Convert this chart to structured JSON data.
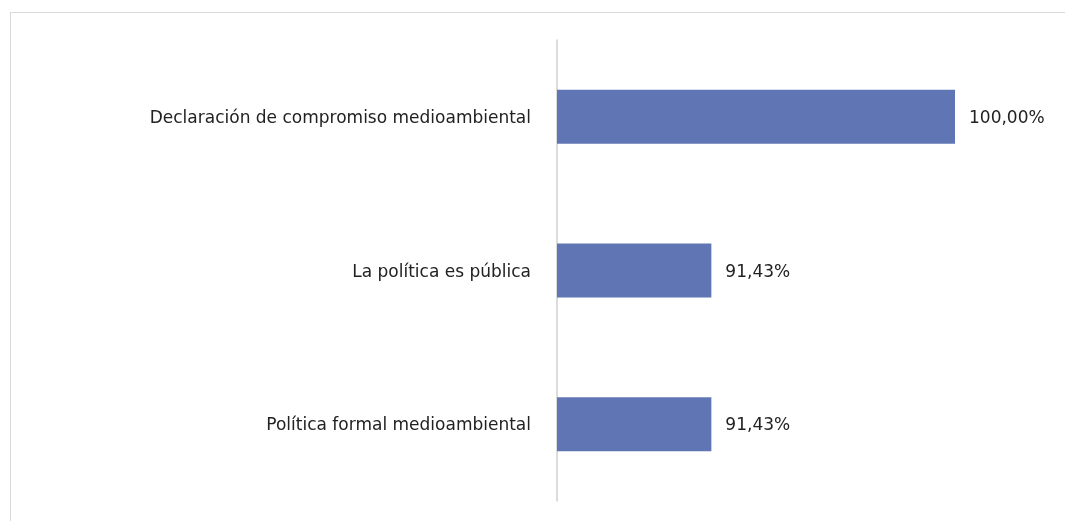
{
  "chart_data": {
    "type": "bar",
    "orientation": "horizontal",
    "categories": [
      "Declaración de compromiso medioambiental",
      "La política es pública",
      "Política formal medioambiental"
    ],
    "values": [
      100,
      91.43,
      91.43
    ],
    "value_labels": [
      "100,00%",
      "91,43%",
      "91,43%"
    ],
    "color": "#6076b4",
    "xlim": [
      86,
      100
    ],
    "tick_labels": "y"
  }
}
